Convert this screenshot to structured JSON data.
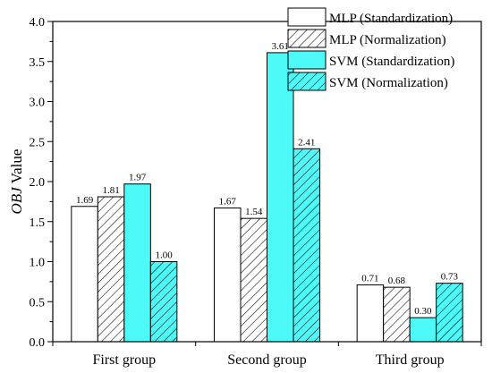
{
  "chart_data": {
    "type": "bar",
    "categories": [
      "First group",
      "Second group",
      "Third group"
    ],
    "series": [
      {
        "name": "MLP (Standardization)",
        "values": [
          1.69,
          1.67,
          0.71
        ],
        "color": "#ffffff",
        "pattern": "solid"
      },
      {
        "name": "MLP (Normalization)",
        "values": [
          1.81,
          1.54,
          0.68
        ],
        "color": "#ffffff",
        "pattern": "hatch"
      },
      {
        "name": "SVM (Standardization)",
        "values": [
          1.97,
          3.61,
          0.3
        ],
        "color": "#4dfaf8",
        "pattern": "solid"
      },
      {
        "name": "SVM (Normalization)",
        "values": [
          1.0,
          2.41,
          0.73
        ],
        "color": "#4dfaf8",
        "pattern": "hatch"
      }
    ],
    "data_labels": [
      [
        "1.69",
        "1.67",
        "0.71"
      ],
      [
        "1.81",
        "1.54",
        "0.68"
      ],
      [
        "1.97",
        "3.61",
        "0.30"
      ],
      [
        "1.00",
        "2.41",
        "0.73"
      ]
    ],
    "ylabel_italic": "OBJ",
    "ylabel_rest": " Value",
    "xlabel": "",
    "ylim": [
      0,
      4.0
    ],
    "yticks": [
      "0.0",
      "0.5",
      "1.0",
      "1.5",
      "2.0",
      "2.5",
      "3.0",
      "3.5",
      "4.0"
    ],
    "grid": false,
    "legend_position": "top-right",
    "edge_color": "#000000"
  }
}
